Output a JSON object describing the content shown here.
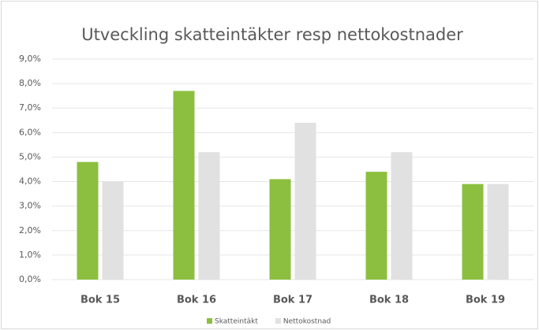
{
  "chart_data": {
    "type": "bar",
    "title": "Utveckling skatteintäkter resp nettokostnader",
    "categories": [
      "Bok 15",
      "Bok 16",
      "Bok 17",
      "Bok 18",
      "Bok 19"
    ],
    "series": [
      {
        "name": "Skatteintäkt",
        "color": "#8cbf3f",
        "values": [
          4.8,
          7.7,
          4.1,
          4.4,
          3.9
        ]
      },
      {
        "name": "Nettokostnad",
        "color": "#e1e1e1",
        "values": [
          4.0,
          5.2,
          6.4,
          5.2,
          3.9
        ]
      }
    ],
    "ylim": [
      0,
      9
    ],
    "yticks": [
      {
        "value": 0,
        "label": "0,0%"
      },
      {
        "value": 1,
        "label": "1,0%"
      },
      {
        "value": 2,
        "label": "2,0%"
      },
      {
        "value": 3,
        "label": "3,0%"
      },
      {
        "value": 4,
        "label": "4,0%"
      },
      {
        "value": 5,
        "label": "5,0%"
      },
      {
        "value": 6,
        "label": "6,0%"
      },
      {
        "value": 7,
        "label": "7,0%"
      },
      {
        "value": 8,
        "label": "8,0%"
      },
      {
        "value": 9,
        "label": "9,0%"
      }
    ],
    "grid": true,
    "legend": "bottom"
  }
}
